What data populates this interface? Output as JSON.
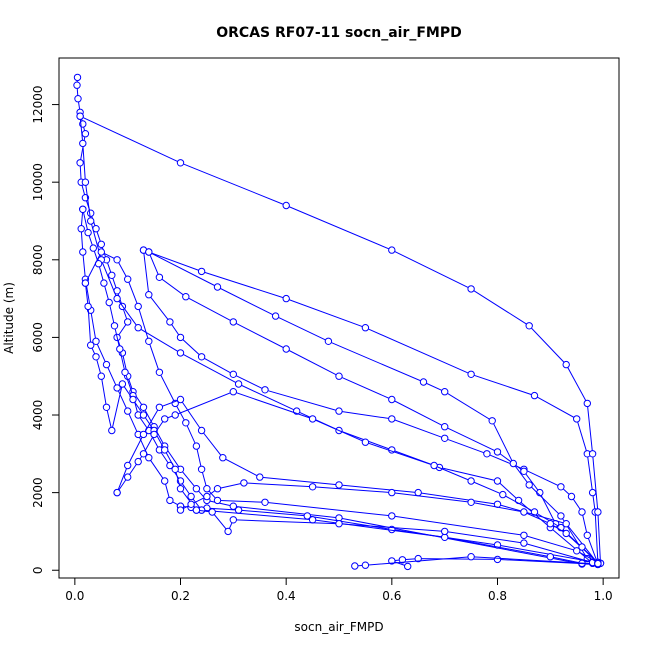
{
  "chart_data": {
    "type": "line",
    "title": "ORCAS RF07-11 socn_air_FMPD",
    "xlabel": "socn_air_FMPD",
    "ylabel": "Altitude (m)",
    "xlim": [
      -0.03,
      1.03
    ],
    "ylim": [
      -200,
      13200
    ],
    "x_ticks": [
      0.0,
      0.2,
      0.4,
      0.6,
      0.8,
      1.0
    ],
    "x_tick_labels": [
      "0.0",
      "0.2",
      "0.4",
      "0.6",
      "0.8",
      "1.0"
    ],
    "y_ticks": [
      0,
      2000,
      4000,
      6000,
      8000,
      10000,
      12000
    ],
    "y_tick_labels": [
      "0",
      "2000",
      "4000",
      "6000",
      "8000",
      "10000",
      "12000"
    ],
    "series_color": "#0000ff",
    "marker": "open-circle",
    "grid": false,
    "legend": "none",
    "series": [
      {
        "values": [
          [
            0.005,
            12700
          ],
          [
            0.004,
            12500
          ],
          [
            0.006,
            12150
          ],
          [
            0.01,
            11800
          ],
          [
            0.015,
            11500
          ],
          [
            0.02,
            11250
          ],
          [
            0.01,
            10500
          ],
          [
            0.012,
            10000
          ],
          [
            0.02,
            9600
          ],
          [
            0.03,
            9200
          ],
          [
            0.04,
            8800
          ],
          [
            0.05,
            8400
          ],
          [
            0.06,
            8000
          ],
          [
            0.07,
            7600
          ],
          [
            0.08,
            7200
          ],
          [
            0.09,
            6800
          ],
          [
            0.1,
            6400
          ],
          [
            0.08,
            6000
          ],
          [
            0.09,
            5600
          ],
          [
            0.1,
            5000
          ],
          [
            0.11,
            4600
          ],
          [
            0.13,
            4200
          ],
          [
            0.15,
            3700
          ],
          [
            0.17,
            3200
          ],
          [
            0.2,
            2600
          ],
          [
            0.23,
            2100
          ],
          [
            0.25,
            1800
          ],
          [
            0.3,
            1650
          ],
          [
            0.5,
            1350
          ],
          [
            0.96,
            160
          ],
          [
            0.99,
            150
          ]
        ]
      },
      {
        "values": [
          [
            0.99,
            160
          ],
          [
            0.97,
            900
          ],
          [
            0.96,
            1500
          ],
          [
            0.94,
            1900
          ],
          [
            0.92,
            2150
          ],
          [
            0.85,
            2600
          ],
          [
            0.78,
            3000
          ],
          [
            0.7,
            3400
          ],
          [
            0.6,
            3900
          ],
          [
            0.5,
            4100
          ],
          [
            0.36,
            4650
          ],
          [
            0.3,
            5050
          ],
          [
            0.24,
            5500
          ],
          [
            0.2,
            6000
          ],
          [
            0.18,
            6400
          ],
          [
            0.14,
            7100
          ],
          [
            0.13,
            8250
          ]
        ]
      },
      {
        "values": [
          [
            0.13,
            8250
          ],
          [
            0.24,
            7700
          ],
          [
            0.4,
            7000
          ],
          [
            0.55,
            6250
          ],
          [
            0.75,
            5050
          ],
          [
            0.87,
            4500
          ],
          [
            0.95,
            3900
          ],
          [
            0.97,
            3000
          ],
          [
            0.98,
            2000
          ],
          [
            0.985,
            1500
          ],
          [
            0.99,
            200
          ]
        ]
      },
      {
        "values": [
          [
            0.99,
            200
          ],
          [
            0.91,
            1200
          ],
          [
            0.88,
            2000
          ],
          [
            0.85,
            2550
          ],
          [
            0.8,
            3050
          ],
          [
            0.7,
            3700
          ],
          [
            0.6,
            4400
          ],
          [
            0.5,
            5000
          ],
          [
            0.4,
            5700
          ],
          [
            0.3,
            6400
          ],
          [
            0.21,
            7050
          ],
          [
            0.16,
            7550
          ],
          [
            0.14,
            8200
          ]
        ]
      },
      {
        "values": [
          [
            0.14,
            8200
          ],
          [
            0.27,
            7300
          ],
          [
            0.38,
            6550
          ],
          [
            0.48,
            5900
          ],
          [
            0.66,
            4850
          ],
          [
            0.7,
            4600
          ],
          [
            0.79,
            3850
          ],
          [
            0.83,
            2750
          ],
          [
            0.86,
            2200
          ],
          [
            0.92,
            1400
          ],
          [
            0.97,
            300
          ],
          [
            0.98,
            180
          ]
        ]
      },
      {
        "values": [
          [
            0.98,
            180
          ],
          [
            0.9,
            1100
          ],
          [
            0.84,
            1800
          ],
          [
            0.8,
            2300
          ],
          [
            0.69,
            2650
          ],
          [
            0.6,
            3100
          ],
          [
            0.5,
            3600
          ],
          [
            0.42,
            4100
          ],
          [
            0.31,
            4800
          ],
          [
            0.2,
            5600
          ],
          [
            0.12,
            6250
          ],
          [
            0.08,
            7000
          ],
          [
            0.05,
            8000
          ],
          [
            0.03,
            9000
          ],
          [
            0.02,
            10000
          ],
          [
            0.015,
            11000
          ],
          [
            0.01,
            11700
          ]
        ]
      },
      {
        "values": [
          [
            0.01,
            11700
          ],
          [
            0.2,
            10500
          ],
          [
            0.4,
            9400
          ],
          [
            0.6,
            8250
          ],
          [
            0.75,
            7250
          ],
          [
            0.86,
            6300
          ],
          [
            0.93,
            5300
          ],
          [
            0.97,
            4300
          ],
          [
            0.98,
            3000
          ],
          [
            0.99,
            1500
          ],
          [
            0.995,
            180
          ]
        ]
      },
      {
        "values": [
          [
            0.995,
            180
          ],
          [
            0.8,
            650
          ],
          [
            0.6,
            1050
          ],
          [
            0.44,
            1400
          ],
          [
            0.31,
            1550
          ],
          [
            0.25,
            1600
          ],
          [
            0.22,
            1620
          ],
          [
            0.2,
            1650
          ]
        ]
      },
      {
        "values": [
          [
            0.2,
            1650
          ],
          [
            0.18,
            1800
          ],
          [
            0.17,
            2300
          ],
          [
            0.14,
            2900
          ],
          [
            0.12,
            3500
          ],
          [
            0.1,
            4100
          ],
          [
            0.08,
            4700
          ],
          [
            0.06,
            5300
          ],
          [
            0.04,
            5900
          ],
          [
            0.03,
            6700
          ],
          [
            0.02,
            7500
          ],
          [
            0.015,
            8200
          ],
          [
            0.012,
            8800
          ],
          [
            0.015,
            9300
          ]
        ]
      },
      {
        "values": [
          [
            0.015,
            9300
          ],
          [
            0.025,
            8700
          ],
          [
            0.035,
            8300
          ],
          [
            0.045,
            7900
          ],
          [
            0.055,
            7400
          ],
          [
            0.065,
            6900
          ],
          [
            0.075,
            6300
          ],
          [
            0.085,
            5700
          ],
          [
            0.095,
            5100
          ],
          [
            0.11,
            4500
          ],
          [
            0.12,
            4000
          ],
          [
            0.14,
            3600
          ],
          [
            0.16,
            3100
          ],
          [
            0.18,
            2700
          ],
          [
            0.2,
            2300
          ],
          [
            0.22,
            1900
          ],
          [
            0.24,
            1550
          ]
        ]
      },
      {
        "values": [
          [
            0.24,
            1550
          ],
          [
            0.45,
            1300
          ],
          [
            0.7,
            850
          ],
          [
            0.9,
            350
          ],
          [
            0.96,
            180
          ],
          [
            0.99,
            150
          ]
        ]
      },
      {
        "values": [
          [
            0.99,
            150
          ],
          [
            0.8,
            280
          ],
          [
            0.65,
            300
          ],
          [
            0.62,
            270
          ],
          [
            0.6,
            240
          ],
          [
            0.63,
            100
          ]
        ]
      },
      {
        "values": [
          [
            0.99,
            160
          ],
          [
            0.75,
            350
          ],
          [
            0.55,
            130
          ],
          [
            0.53,
            110
          ]
        ]
      },
      {
        "values": [
          [
            0.98,
            200
          ],
          [
            0.85,
            700
          ],
          [
            0.7,
            1000
          ],
          [
            0.5,
            1200
          ],
          [
            0.3,
            1300
          ],
          [
            0.29,
            1000
          ],
          [
            0.26,
            1500
          ],
          [
            0.23,
            1550
          ]
        ]
      },
      {
        "values": [
          [
            0.23,
            1550
          ],
          [
            0.2,
            2100
          ],
          [
            0.19,
            2600
          ],
          [
            0.17,
            3100
          ],
          [
            0.15,
            3600
          ],
          [
            0.13,
            4000
          ],
          [
            0.11,
            4400
          ],
          [
            0.09,
            4800
          ],
          [
            0.07,
            3600
          ],
          [
            0.06,
            4200
          ],
          [
            0.05,
            5000
          ],
          [
            0.04,
            5500
          ],
          [
            0.03,
            5800
          ],
          [
            0.025,
            6800
          ],
          [
            0.02,
            7400
          ]
        ]
      },
      {
        "values": [
          [
            0.02,
            7400
          ],
          [
            0.05,
            8200
          ],
          [
            0.08,
            8000
          ],
          [
            0.1,
            7500
          ],
          [
            0.12,
            6800
          ],
          [
            0.14,
            5900
          ],
          [
            0.16,
            5100
          ],
          [
            0.19,
            4300
          ],
          [
            0.21,
            3800
          ],
          [
            0.23,
            3200
          ],
          [
            0.24,
            2600
          ],
          [
            0.25,
            2100
          ],
          [
            0.27,
            1800
          ],
          [
            0.36,
            1750
          ],
          [
            0.6,
            1400
          ],
          [
            0.85,
            900
          ],
          [
            0.95,
            500
          ],
          [
            0.99,
            200
          ]
        ]
      },
      {
        "values": [
          [
            0.99,
            200
          ],
          [
            0.92,
            1100
          ],
          [
            0.87,
            1500
          ],
          [
            0.81,
            1950
          ],
          [
            0.75,
            2300
          ],
          [
            0.68,
            2700
          ],
          [
            0.55,
            3300
          ],
          [
            0.45,
            3900
          ],
          [
            0.3,
            4600
          ],
          [
            0.19,
            4000
          ],
          [
            0.17,
            3900
          ],
          [
            0.15,
            3500
          ],
          [
            0.13,
            3000
          ],
          [
            0.12,
            2800
          ],
          [
            0.1,
            2400
          ],
          [
            0.08,
            2000
          ]
        ]
      },
      {
        "values": [
          [
            0.08,
            2000
          ],
          [
            0.1,
            2700
          ],
          [
            0.13,
            3500
          ],
          [
            0.16,
            4200
          ],
          [
            0.2,
            4400
          ],
          [
            0.24,
            3600
          ],
          [
            0.28,
            2900
          ],
          [
            0.35,
            2400
          ],
          [
            0.5,
            2200
          ],
          [
            0.65,
            2000
          ],
          [
            0.8,
            1700
          ],
          [
            0.93,
            1200
          ],
          [
            0.99,
            170
          ]
        ]
      },
      {
        "values": [
          [
            0.99,
            170
          ],
          [
            0.96,
            600
          ],
          [
            0.93,
            950
          ],
          [
            0.9,
            1200
          ],
          [
            0.85,
            1500
          ],
          [
            0.75,
            1750
          ],
          [
            0.6,
            2000
          ],
          [
            0.45,
            2150
          ],
          [
            0.32,
            2250
          ],
          [
            0.27,
            2100
          ],
          [
            0.25,
            1900
          ],
          [
            0.22,
            1700
          ],
          [
            0.2,
            1550
          ]
        ]
      }
    ]
  }
}
